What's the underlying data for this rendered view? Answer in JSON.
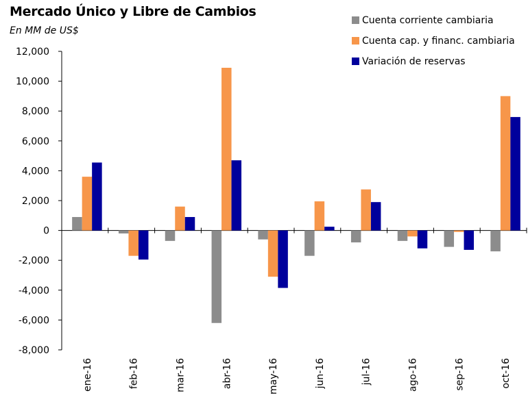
{
  "chart_data": {
    "type": "bar",
    "title": "Mercado Único y Libre de Cambios",
    "subtitle": "En MM de US$",
    "categories": [
      "ene-16",
      "feb-16",
      "mar-16",
      "abr-16",
      "may-16",
      "jun-16",
      "jul-16",
      "ago-16",
      "sep-16",
      "oct-16"
    ],
    "y_tick_labels": [
      "12,000",
      "10,000",
      "8,000",
      "6,000",
      "4,000",
      "2,000",
      "0",
      "-2,000",
      "-4,000",
      "-6,000",
      "-8,000"
    ],
    "ylim": [
      -8000,
      12000
    ],
    "y_ticks": [
      12000,
      10000,
      8000,
      6000,
      4000,
      2000,
      0,
      -2000,
      -4000,
      -6000,
      -8000
    ],
    "grid": false,
    "legend_position": "top-right",
    "series": [
      {
        "name": "Cuenta corriente cambiaria",
        "color": "#8c8c8c",
        "values": [
          900,
          -200,
          -700,
          -6200,
          -600,
          -1700,
          -800,
          -700,
          -1100,
          -1400
        ]
      },
      {
        "name": "Cuenta cap. y financ. cambiaria",
        "color": "#f7964a",
        "values": [
          3600,
          -1700,
          1600,
          10900,
          -3100,
          1950,
          2750,
          -400,
          -100,
          9000
        ]
      },
      {
        "name": "Variación de reservas",
        "color": "#00009c",
        "values": [
          4550,
          -1950,
          900,
          4700,
          -3850,
          250,
          1900,
          -1200,
          -1300,
          7600
        ]
      }
    ]
  }
}
